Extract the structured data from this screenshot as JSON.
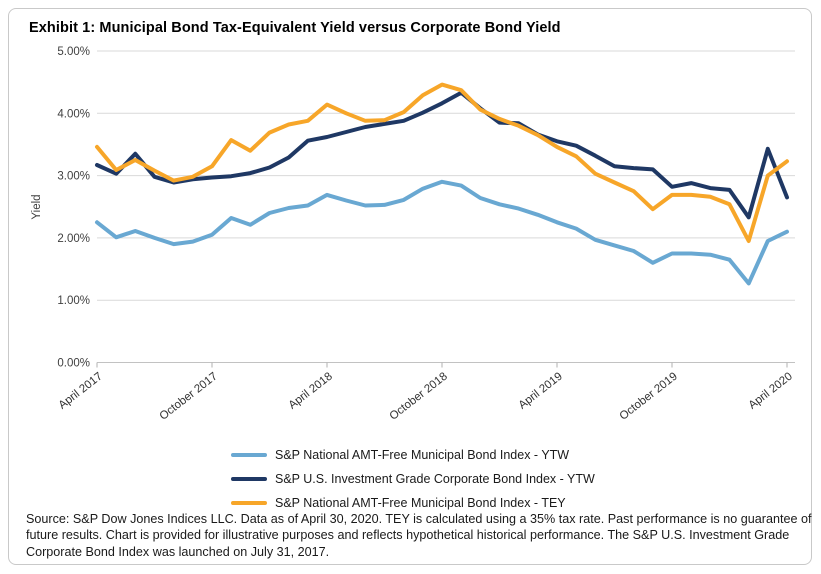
{
  "title": "Exhibit 1: Municipal Bond Tax-Equivalent Yield versus Corporate Bond Yield",
  "chart_data": {
    "type": "line",
    "title": "Exhibit 1: Municipal Bond Tax-Equivalent Yield versus Corporate Bond Yield",
    "xlabel": "",
    "ylabel": "Yield",
    "ylim": [
      0,
      5
    ],
    "grid": "horizontal",
    "legend_position": "bottom",
    "ytick_labels": [
      "0.00%",
      "1.00%",
      "2.00%",
      "3.00%",
      "4.00%",
      "5.00%"
    ],
    "x": [
      "Apr 2017",
      "May 2017",
      "Jun 2017",
      "Jul 2017",
      "Aug 2017",
      "Sep 2017",
      "Oct 2017",
      "Nov 2017",
      "Dec 2017",
      "Jan 2018",
      "Feb 2018",
      "Mar 2018",
      "Apr 2018",
      "May 2018",
      "Jun 2018",
      "Jul 2018",
      "Aug 2018",
      "Sep 2018",
      "Oct 2018",
      "Nov 2018",
      "Dec 2018",
      "Jan 2019",
      "Feb 2019",
      "Mar 2019",
      "Apr 2019",
      "May 2019",
      "Jun 2019",
      "Jul 2019",
      "Aug 2019",
      "Sep 2019",
      "Oct 2019",
      "Nov 2019",
      "Dec 2019",
      "Jan 2020",
      "Feb 2020",
      "Mar 2020",
      "Apr 2020"
    ],
    "xtick_indices": [
      0,
      6,
      12,
      18,
      24,
      30,
      36
    ],
    "xtick_labels": [
      "April 2017",
      "October 2017",
      "April 2018",
      "October 2018",
      "April 2019",
      "October 2019",
      "April 2020"
    ],
    "series": [
      {
        "id": "muni-ytw",
        "name": "S&P National AMT-Free Municipal Bond Index - YTW",
        "color": "#69a8d2",
        "values": [
          2.25,
          2.01,
          2.11,
          2.0,
          1.9,
          1.94,
          2.05,
          2.32,
          2.21,
          2.4,
          2.48,
          2.52,
          2.69,
          2.6,
          2.52,
          2.53,
          2.61,
          2.79,
          2.9,
          2.84,
          2.64,
          2.54,
          2.47,
          2.37,
          2.25,
          2.15,
          1.97,
          1.88,
          1.79,
          1.6,
          1.75,
          1.75,
          1.73,
          1.65,
          1.27,
          1.95,
          2.1
        ]
      },
      {
        "id": "corp-ytw",
        "name": "S&P U.S. Investment Grade Corporate Bond Index - YTW",
        "color": "#1f3864",
        "values": [
          3.17,
          3.03,
          3.35,
          2.98,
          2.89,
          2.94,
          2.97,
          2.99,
          3.04,
          3.13,
          3.29,
          3.56,
          3.62,
          3.7,
          3.78,
          3.83,
          3.88,
          4.01,
          4.16,
          4.33,
          4.08,
          3.85,
          3.84,
          3.66,
          3.55,
          3.48,
          3.32,
          3.15,
          3.12,
          3.1,
          2.82,
          2.88,
          2.8,
          2.77,
          2.33,
          3.43,
          2.65
        ]
      },
      {
        "id": "muni-tey",
        "name": "S&P National AMT-Free Municipal Bond Index - TEY",
        "color": "#f7a629",
        "values": [
          3.46,
          3.09,
          3.25,
          3.08,
          2.92,
          2.98,
          3.15,
          3.57,
          3.4,
          3.69,
          3.82,
          3.88,
          4.14,
          4.0,
          3.88,
          3.89,
          4.02,
          4.29,
          4.46,
          4.37,
          4.06,
          3.91,
          3.8,
          3.65,
          3.46,
          3.31,
          3.03,
          2.89,
          2.75,
          2.46,
          2.69,
          2.69,
          2.66,
          2.54,
          1.95,
          3.0,
          3.23
        ]
      }
    ]
  },
  "source_note": "Source: S&P Dow Jones Indices LLC. Data as of April 30, 2020. TEY is calculated using a 35% tax rate. Past performance is no guarantee of future results. Chart is provided for illustrative purposes and reflects hypothetical historical performance. The S&P U.S. Investment Grade Corporate Bond Index was launched on July 31, 2017."
}
